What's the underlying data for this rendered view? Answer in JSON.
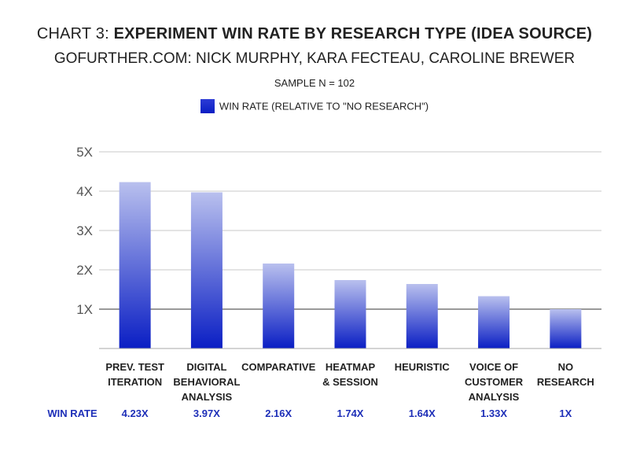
{
  "chart_data": {
    "type": "bar",
    "title_prefix": "CHART 3: ",
    "title_main": "EXPERIMENT WIN RATE BY RESEARCH TYPE (IDEA SOURCE)",
    "subtitle": "GOFURTHER.COM: NICK MURPHY, KARA FECTEAU, CAROLINE BREWER",
    "note": "SAMPLE N = 102",
    "legend": "WIN RATE (RELATIVE TO \"NO RESEARCH\")",
    "legend_position": "top-center",
    "categories": [
      [
        "PREV. TEST",
        "ITERATION"
      ],
      [
        "DIGITAL",
        "BEHAVIORAL",
        "ANALYSIS"
      ],
      [
        "COMPARATIVE"
      ],
      [
        "HEATMAP",
        "& SESSION"
      ],
      [
        "HEURISTIC"
      ],
      [
        "VOICE OF",
        "CUSTOMER",
        "ANALYSIS"
      ],
      [
        "NO",
        "RESEARCH"
      ]
    ],
    "values": [
      4.23,
      3.97,
      2.16,
      1.74,
      1.64,
      1.33,
      1
    ],
    "value_labels": [
      "4.23X",
      "3.97X",
      "2.16X",
      "1.74X",
      "1.64X",
      "1.33X",
      "1X"
    ],
    "row_label": "WIN RATE",
    "yticks": [
      "1X",
      "2X",
      "3X",
      "4X",
      "5X"
    ],
    "ylim": [
      0,
      5
    ],
    "grid": true,
    "colors": {
      "bar_top": "#b9c0ee",
      "bar_bottom": "#0a1ec4",
      "label": "#1e2fb8"
    }
  }
}
